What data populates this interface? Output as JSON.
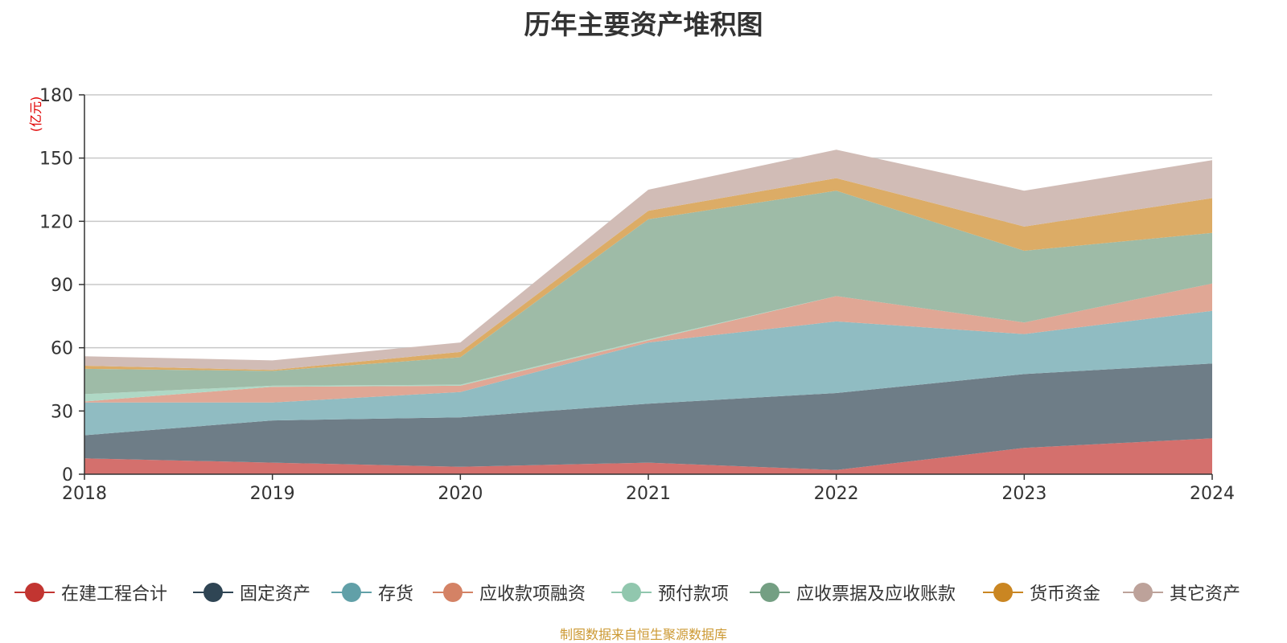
{
  "chart_data": {
    "type": "area",
    "stacked": true,
    "title": "历年主要资产堆积图",
    "unit_label": "(亿元)",
    "source": "制图数据来自恒生聚源数据库",
    "categories": [
      "2018",
      "2019",
      "2020",
      "2021",
      "2022",
      "2023",
      "2024"
    ],
    "ylim": [
      0,
      180
    ],
    "yticks": [
      0,
      30,
      60,
      90,
      120,
      150,
      180
    ],
    "grid": true,
    "legend_position": "bottom",
    "series": [
      {
        "name": "在建工程合计",
        "color": "#c23531",
        "fill": "#d4706d",
        "values": [
          7.5,
          5.5,
          3.5,
          5.5,
          2,
          12.5,
          17
        ]
      },
      {
        "name": "固定资产",
        "color": "#2f4554",
        "fill": "#6e7d87",
        "values": [
          11,
          20,
          23.5,
          28,
          36.5,
          35,
          35.5
        ]
      },
      {
        "name": "存货",
        "color": "#61a0a8",
        "fill": "#90bcc2",
        "values": [
          15.5,
          8.5,
          12,
          29,
          34,
          19,
          25
        ]
      },
      {
        "name": "应收款项融资",
        "color": "#d48265",
        "fill": "#e0a795",
        "values": [
          0.5,
          7.5,
          3,
          1,
          12,
          5.5,
          13
        ]
      },
      {
        "name": "预付款项",
        "color": "#91c7ae",
        "fill": "#afd8c5",
        "values": [
          3.5,
          0.5,
          0.5,
          0.5,
          0,
          0,
          0
        ]
      },
      {
        "name": "应收票据及应收账款",
        "color": "#749f83",
        "fill": "#9ebba7",
        "values": [
          12,
          7,
          13,
          57,
          50,
          34,
          24
        ]
      },
      {
        "name": "货币资金",
        "color": "#ca8622",
        "fill": "#dcac66",
        "values": [
          1.5,
          0.5,
          2.5,
          4,
          6,
          11.5,
          16.5
        ]
      },
      {
        "name": "其它资产",
        "color": "#bda29a",
        "fill": "#d1bcb6",
        "values": [
          4.5,
          4.5,
          4.5,
          10,
          13.5,
          17,
          18
        ]
      }
    ]
  }
}
